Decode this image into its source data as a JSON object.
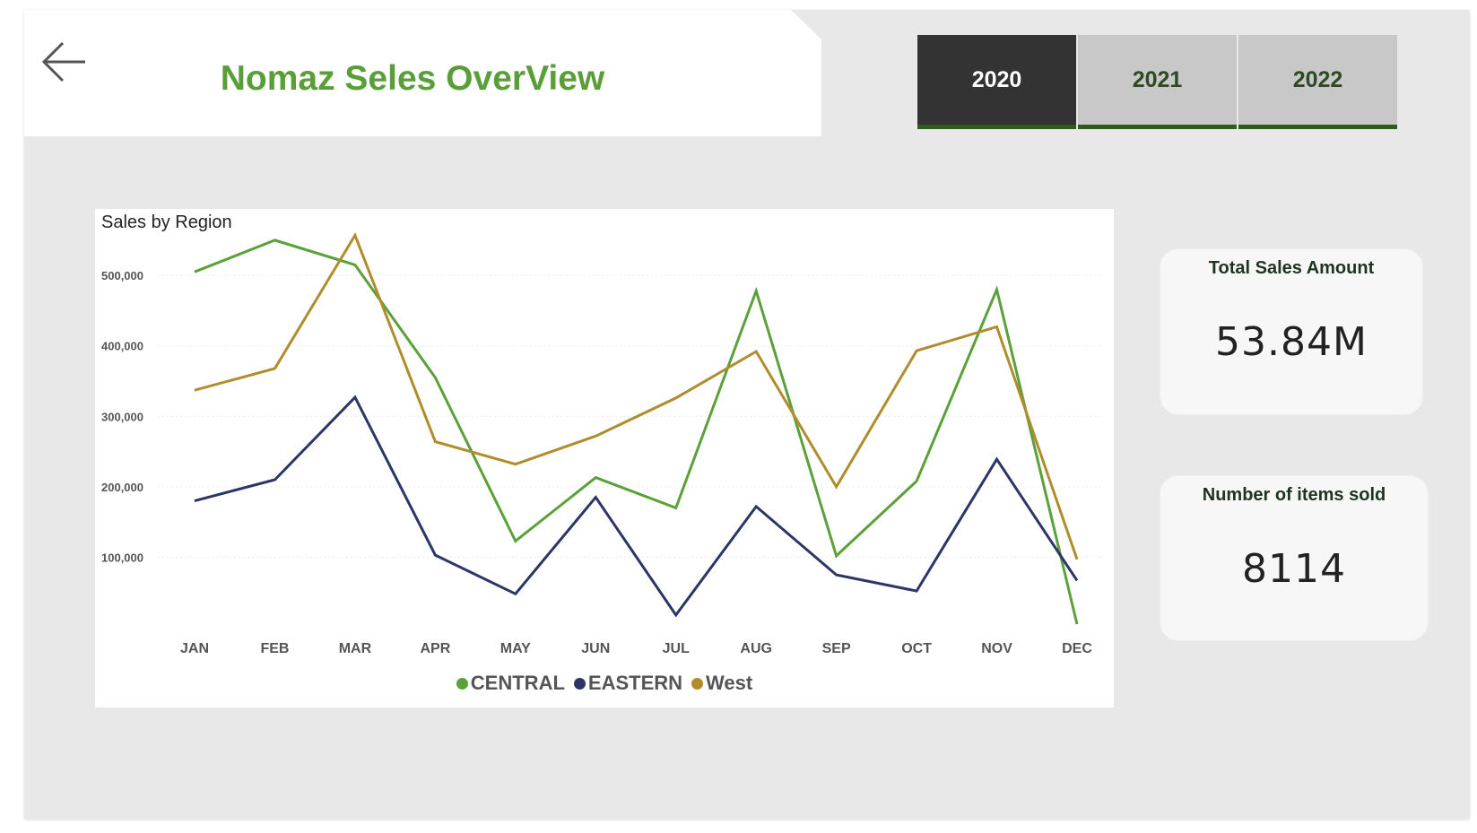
{
  "header": {
    "title": "Nomaz Seles OverView",
    "back_icon": "arrow-left-icon"
  },
  "year_tabs": [
    {
      "label": "2020",
      "active": true
    },
    {
      "label": "2021",
      "active": false
    },
    {
      "label": "2022",
      "active": false
    }
  ],
  "colors": {
    "central": "#5aa13a",
    "eastern": "#2c3566",
    "west": "#b08d2c",
    "title": "#5a9e3a",
    "active_tab": "#333333"
  },
  "chart_data": {
    "type": "line",
    "title": "Sales by Region",
    "categories": [
      "JAN",
      "FEB",
      "MAR",
      "APR",
      "MAY",
      "JUN",
      "JUL",
      "AUG",
      "SEP",
      "OCT",
      "NOV",
      "DEC"
    ],
    "y_ticks": [
      "100,000",
      "200,000",
      "300,000",
      "400,000",
      "500,000"
    ],
    "y_tick_values": [
      100000,
      200000,
      300000,
      400000,
      500000
    ],
    "ylim": [
      0,
      560000
    ],
    "grid": true,
    "legend_position": "bottom",
    "series": [
      {
        "name": "CENTRAL",
        "color": "#5aa13a",
        "values": [
          505000,
          550000,
          515000,
          355000,
          123000,
          213000,
          170000,
          478000,
          102000,
          208000,
          480000,
          5000
        ]
      },
      {
        "name": "EASTERN",
        "color": "#2c3566",
        "values": [
          180000,
          210000,
          327000,
          103000,
          48000,
          185000,
          18000,
          172000,
          75000,
          52000,
          239000,
          67000
        ]
      },
      {
        "name": "West",
        "color": "#b08d2c",
        "values": [
          337000,
          368000,
          557000,
          264000,
          232000,
          272000,
          326000,
          392000,
          200000,
          393000,
          427000,
          97000
        ]
      }
    ]
  },
  "kpis": {
    "total_sales": {
      "label": "Total Sales Amount",
      "value": "53.84M"
    },
    "items_sold": {
      "label": "Number of items sold",
      "value": "8114"
    }
  }
}
